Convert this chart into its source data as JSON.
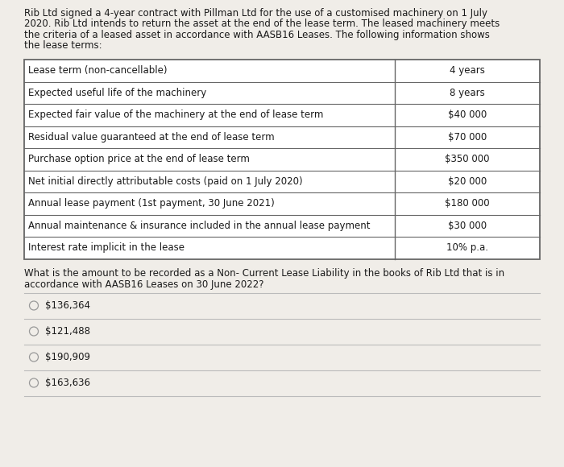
{
  "background_color": "#f0ede8",
  "intro_text_lines": [
    "Rib Ltd signed a 4-year contract with Pillman Ltd for the use of a customised machinery on 1 July",
    "2020. Rib Ltd intends to return the asset at the end of the lease term. The leased machinery meets",
    "the criteria of a leased asset in accordance with AASB16 Leases. The following information shows",
    "the lease terms:"
  ],
  "table_rows": [
    [
      "Lease term (non-cancellable)",
      "4 years"
    ],
    [
      "Expected useful life of the machinery",
      "8 years"
    ],
    [
      "Expected fair value of the machinery at the end of lease term",
      "$40 000"
    ],
    [
      "Residual value guaranteed at the end of lease term",
      "$70 000"
    ],
    [
      "Purchase option price at the end of lease term",
      "$350 000"
    ],
    [
      "Net initial directly attributable costs (paid on 1 July 2020)",
      "$20 000"
    ],
    [
      "Annual lease payment (1st payment, 30 June 2021)",
      "$180 000"
    ],
    [
      "Annual maintenance & insurance included in the annual lease payment",
      "$30 000"
    ],
    [
      "Interest rate implicit in the lease",
      "10% p.a."
    ]
  ],
  "question_text_lines": [
    "What is the amount to be recorded as a Non- Current Lease Liability in the books of Rib Ltd that is in",
    "accordance with AASB16 Leases on 30 June 2022?"
  ],
  "options": [
    "$136,364",
    "$121,488",
    "$190,909",
    "$163,636"
  ],
  "font_size_intro": 8.5,
  "font_size_table": 8.5,
  "font_size_question": 8.5,
  "font_size_options": 8.5,
  "text_color": "#1a1a1a",
  "table_border_color": "#666666",
  "table_bg_color": "#ffffff",
  "option_circle_color": "#999999",
  "line_color": "#bbbbbb"
}
